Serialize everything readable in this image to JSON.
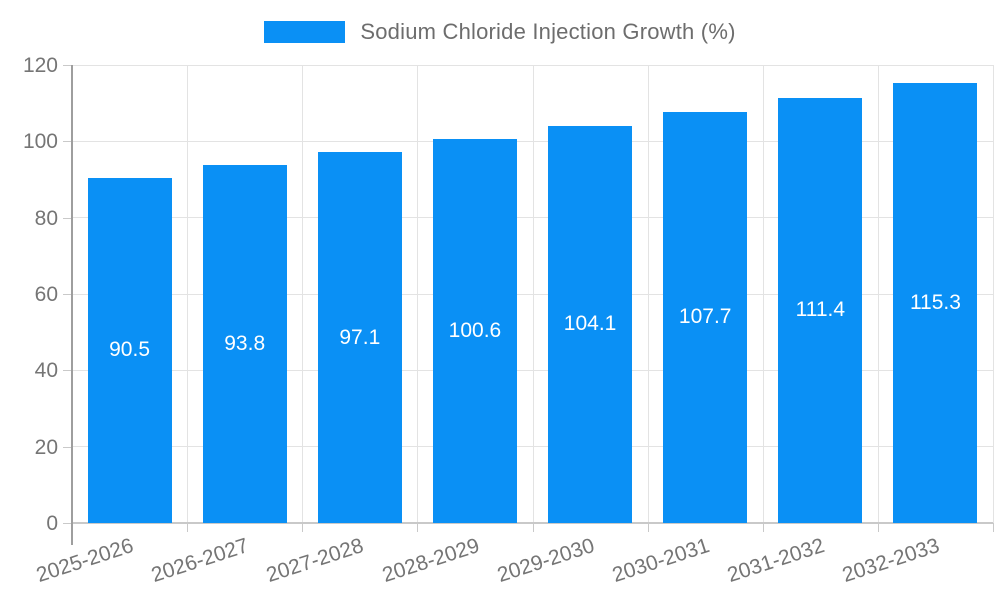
{
  "chart_data": {
    "type": "bar",
    "title": "Sodium Chloride Injection Growth (%)",
    "categories": [
      "2025-2026",
      "2026-2027",
      "2027-2028",
      "2028-2029",
      "2029-2030",
      "2030-2031",
      "2031-2032",
      "2032-2033"
    ],
    "values": [
      90.5,
      93.8,
      97.1,
      100.6,
      104.1,
      107.7,
      111.4,
      115.3
    ],
    "value_labels": [
      "90.5",
      "93.8",
      "97.1",
      "100.6",
      "104.1",
      "107.7",
      "111.4",
      "115.3"
    ],
    "xlabel": "",
    "ylabel": "",
    "ylim": [
      0,
      120
    ],
    "yticks": [
      0,
      20,
      40,
      60,
      80,
      100,
      120
    ],
    "grid": true,
    "legend_position": "top",
    "x_label_rotation_deg": -18,
    "colors": {
      "bar": "#0a90f5",
      "bar_value_text": "#ffffff",
      "axis_text": "#757575",
      "legend_text": "#6d6d6d",
      "gridline": "#e3e3e3",
      "y_axis_line": "#9e9e9e",
      "x_axis_line": "#c9c9c9"
    }
  }
}
